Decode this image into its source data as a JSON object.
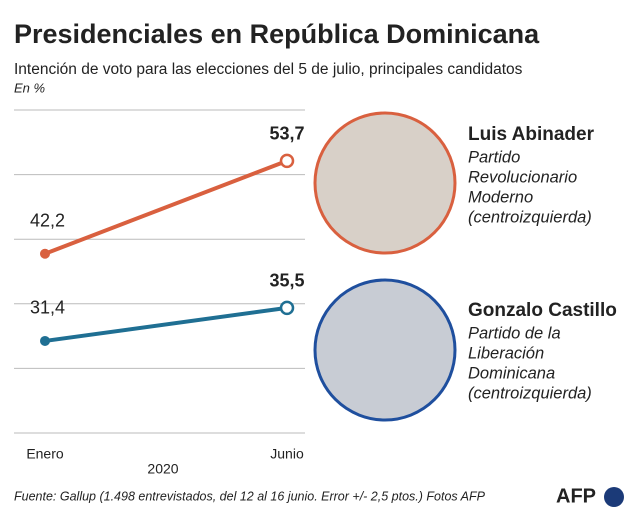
{
  "chart_data": {
    "type": "line",
    "title": "Presidenciales en República Dominicana",
    "subtitle": "Intención de voto para las elecciones del 5 de julio, principales candidatos",
    "unit_note": "En %",
    "categories": [
      "Enero",
      "Junio"
    ],
    "x_label": "2020",
    "series": [
      {
        "name": "Luis Abinader",
        "color": "#d9603f",
        "values": [
          42.2,
          53.7
        ],
        "value_labels": [
          "42,2",
          "53,7"
        ]
      },
      {
        "name": "Gonzalo Castillo",
        "color": "#1f6f93",
        "values": [
          31.4,
          35.5
        ],
        "value_labels": [
          "31,4",
          "35,5"
        ]
      }
    ],
    "ylim": [
      20,
      60
    ],
    "yticks": [
      20,
      28,
      36,
      44,
      52,
      60
    ],
    "grid": true,
    "candidates": [
      {
        "name": "Luis Abinader",
        "color": "#c8654a",
        "party": [
          "Partido",
          "Revolucionario",
          "Moderno"
        ],
        "ideology": "(centroizquierda)"
      },
      {
        "name": "Gonzalo Castillo",
        "color": "#2a6f8f",
        "party": [
          "Partido de la",
          "Liberación",
          "Dominicana"
        ],
        "ideology": "(centroizquierda)"
      }
    ],
    "source": "Fuente: Gallup (1.498 entrevistados, del 12 al 16 junio. Error +/- 2,5 ptos.)  Fotos AFP",
    "logo": "AFP"
  }
}
